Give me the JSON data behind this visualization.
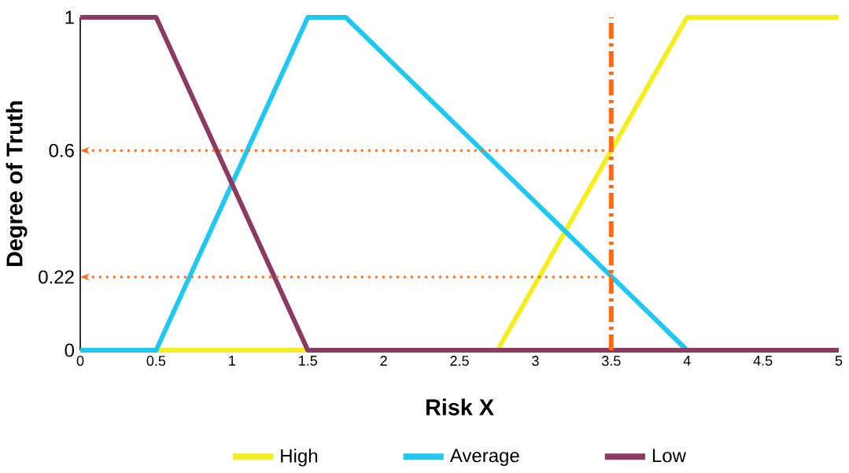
{
  "chart_data": {
    "type": "line",
    "xlabel": "Risk X",
    "ylabel": "Degree of Truth",
    "xlim": [
      0,
      5
    ],
    "ylim": [
      0,
      1
    ],
    "xticks": [
      0,
      0.5,
      1,
      1.5,
      2,
      2.5,
      3,
      3.5,
      4,
      4.5,
      5
    ],
    "yticks": [
      0,
      0.22,
      0.6,
      1
    ],
    "series": [
      {
        "name": "High",
        "color": "#f5ee1e",
        "x": [
          0,
          2.75,
          4,
          5
        ],
        "values": [
          0,
          0,
          1,
          1
        ]
      },
      {
        "name": "Average",
        "color": "#1ec8f0",
        "x": [
          0,
          0.5,
          1.5,
          1.75,
          4,
          5
        ],
        "values": [
          0,
          0,
          1,
          1,
          0,
          0
        ]
      },
      {
        "name": "Low",
        "color": "#8b3a62",
        "x": [
          0,
          0.5,
          1.5,
          5
        ],
        "values": [
          1,
          1,
          0,
          0
        ]
      }
    ],
    "ref_lines": [
      {
        "axis": "x",
        "value": 3.5,
        "color": "#ff6a13",
        "line_style": "dashdot"
      },
      {
        "axis": "y",
        "value": 0.6,
        "color": "#ff6a13",
        "line_style": "dotted"
      },
      {
        "axis": "y",
        "value": 0.22,
        "color": "#ff6a13",
        "line_style": "dotted"
      }
    ],
    "grid": false,
    "legend": "bottom",
    "line_style": "solid",
    "marker": "none"
  }
}
